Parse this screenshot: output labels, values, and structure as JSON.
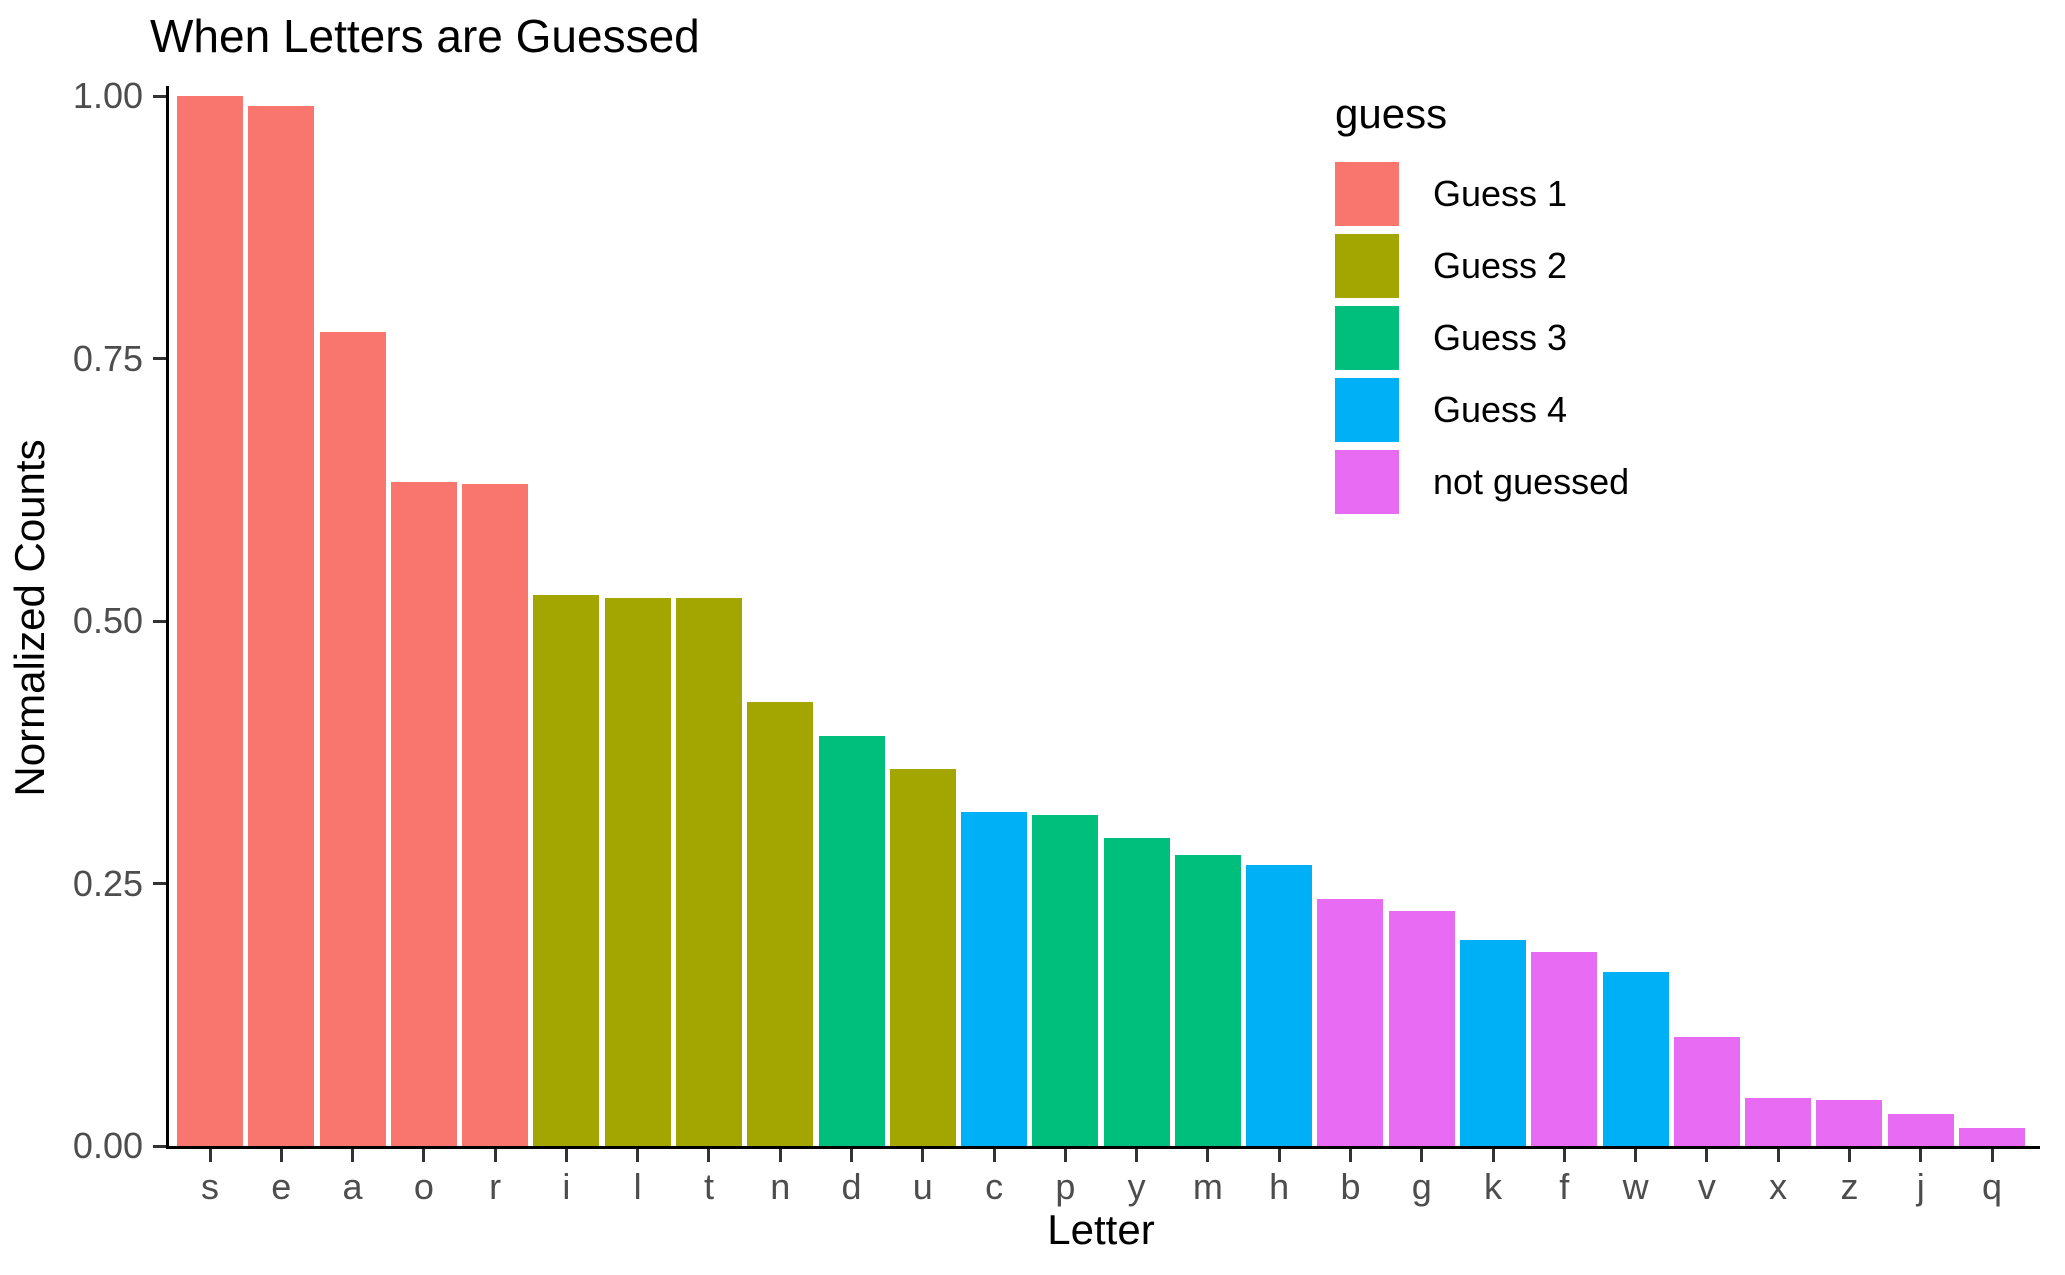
{
  "figure": {
    "title": "When Letters are Guessed",
    "x_axis_title": "Letter",
    "y_axis_title": "Normalized Counts"
  },
  "legend": {
    "title": "guess",
    "entries": [
      {
        "label": "Guess 1",
        "color": "#F8766D"
      },
      {
        "label": "Guess 2",
        "color": "#A3A500"
      },
      {
        "label": "Guess 3",
        "color": "#00BF7C"
      },
      {
        "label": "Guess 4",
        "color": "#00B0F6"
      },
      {
        "label": "not guessed",
        "color": "#E76BF3"
      }
    ]
  },
  "chart_data": {
    "type": "bar",
    "title": "When Letters are Guessed",
    "xlabel": "Letter",
    "ylabel": "Normalized Counts",
    "ylim": [
      0,
      1
    ],
    "grid": false,
    "legend_title": "guess",
    "legend_position": "inside top-right",
    "categories": [
      "s",
      "e",
      "a",
      "o",
      "r",
      "i",
      "l",
      "t",
      "n",
      "d",
      "u",
      "c",
      "p",
      "y",
      "m",
      "h",
      "b",
      "g",
      "k",
      "f",
      "w",
      "v",
      "x",
      "z",
      "j",
      "q"
    ],
    "values": [
      1.0,
      0.99,
      0.775,
      0.632,
      0.63,
      0.525,
      0.522,
      0.522,
      0.423,
      0.39,
      0.359,
      0.318,
      0.315,
      0.293,
      0.277,
      0.268,
      0.235,
      0.224,
      0.196,
      0.185,
      0.166,
      0.104,
      0.046,
      0.044,
      0.03,
      0.017
    ],
    "groups": [
      "Guess 1",
      "Guess 1",
      "Guess 1",
      "Guess 1",
      "Guess 1",
      "Guess 2",
      "Guess 2",
      "Guess 2",
      "Guess 2",
      "Guess 3",
      "Guess 2",
      "Guess 4",
      "Guess 3",
      "Guess 3",
      "Guess 3",
      "Guess 4",
      "not guessed",
      "not guessed",
      "Guess 4",
      "not guessed",
      "Guess 4",
      "not guessed",
      "not guessed",
      "not guessed",
      "not guessed",
      "not guessed"
    ],
    "group_colors": {
      "Guess 1": "#F8766D",
      "Guess 2": "#A3A500",
      "Guess 3": "#00BF7C",
      "Guess 4": "#00B0F6",
      "not guessed": "#E76BF3"
    },
    "yticks": [
      {
        "value": 0.0,
        "label": "0.00"
      },
      {
        "value": 0.25,
        "label": "0.25"
      },
      {
        "value": 0.5,
        "label": "0.50"
      },
      {
        "value": 0.75,
        "label": "0.75"
      },
      {
        "value": 1.0,
        "label": "1.00"
      }
    ]
  },
  "colors": {
    "axis_text": "#4d4d4d",
    "axis_line": "#000000",
    "tick_mark": "#333333",
    "title_text": "#000000",
    "background": "#ffffff"
  }
}
